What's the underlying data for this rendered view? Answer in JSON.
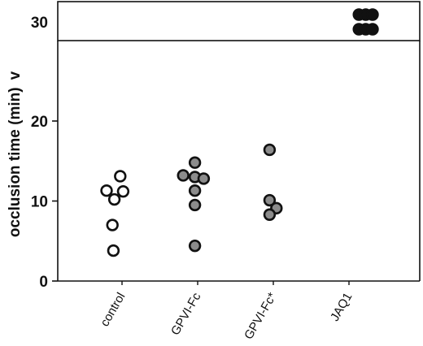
{
  "chart_data": {
    "type": "scatter",
    "title": "",
    "xlabel": "",
    "ylabel": "occlusion time (min)",
    "ylabel_suffix": "v",
    "categories": [
      "control",
      "GPVI-Fc",
      "GPVI-Fc*",
      "JAQ1"
    ],
    "yticks_lower": [
      0,
      10,
      20
    ],
    "ytick_upper": 30,
    "ylim": [
      0,
      30
    ],
    "axis_break": true,
    "grid": false,
    "series": [
      {
        "category": "control",
        "fill": "#ffffff",
        "points": [
          {
            "x": 0.45,
            "y": 13.1
          },
          {
            "x": -0.25,
            "y": 11.3
          },
          {
            "x": 0.15,
            "y": 10.2
          },
          {
            "x": 0.6,
            "y": 11.2
          },
          {
            "x": 0.05,
            "y": 7.0
          },
          {
            "x": 0.1,
            "y": 3.8
          }
        ]
      },
      {
        "category": "GPVI-Fc",
        "fill": "#8c8c8c",
        "points": [
          {
            "x": 0.4,
            "y": 14.8
          },
          {
            "x": -0.2,
            "y": 13.2
          },
          {
            "x": 0.4,
            "y": 13.0
          },
          {
            "x": 0.85,
            "y": 12.8
          },
          {
            "x": 0.4,
            "y": 11.3
          },
          {
            "x": 0.4,
            "y": 9.5
          },
          {
            "x": 0.4,
            "y": 4.4
          }
        ]
      },
      {
        "category": "GPVI-Fc*",
        "fill": "#8c8c8c",
        "points": [
          {
            "x": 0.35,
            "y": 16.4
          },
          {
            "x": 0.35,
            "y": 10.1
          },
          {
            "x": 0.7,
            "y": 9.1
          },
          {
            "x": 0.35,
            "y": 8.3
          }
        ]
      },
      {
        "category": "JAQ1",
        "fill": "#111111",
        "points": [
          {
            "x": 1.05,
            "y": 30
          },
          {
            "x": 1.4,
            "y": 30
          },
          {
            "x": 1.75,
            "y": 30
          },
          {
            "x": 1.05,
            "y": 30
          },
          {
            "x": 1.4,
            "y": 30
          },
          {
            "x": 1.75,
            "y": 30
          }
        ]
      }
    ]
  }
}
